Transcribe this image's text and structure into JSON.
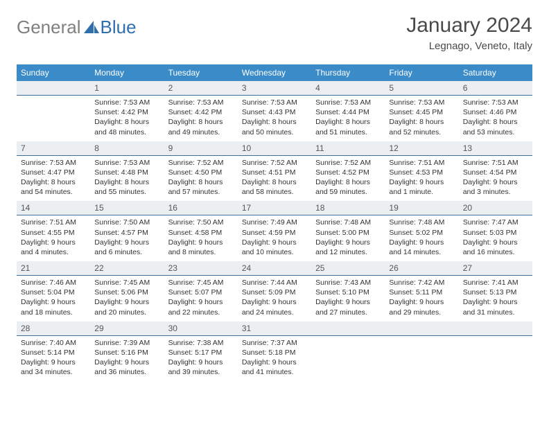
{
  "logo": {
    "text1": "General",
    "text2": "Blue",
    "color1": "#808080",
    "color2": "#2f6fad"
  },
  "title": "January 2024",
  "location": "Legnago, Veneto, Italy",
  "colors": {
    "header_bg": "#3b8bc8",
    "header_text": "#ffffff",
    "daynum_bg": "#eceff1",
    "daynum_border": "#3b6f9e",
    "body_text": "#333333"
  },
  "weekdays": [
    "Sunday",
    "Monday",
    "Tuesday",
    "Wednesday",
    "Thursday",
    "Friday",
    "Saturday"
  ],
  "weeks": [
    [
      null,
      {
        "n": "1",
        "sr": "7:53 AM",
        "ss": "4:42 PM",
        "dl": "8 hours and 48 minutes."
      },
      {
        "n": "2",
        "sr": "7:53 AM",
        "ss": "4:42 PM",
        "dl": "8 hours and 49 minutes."
      },
      {
        "n": "3",
        "sr": "7:53 AM",
        "ss": "4:43 PM",
        "dl": "8 hours and 50 minutes."
      },
      {
        "n": "4",
        "sr": "7:53 AM",
        "ss": "4:44 PM",
        "dl": "8 hours and 51 minutes."
      },
      {
        "n": "5",
        "sr": "7:53 AM",
        "ss": "4:45 PM",
        "dl": "8 hours and 52 minutes."
      },
      {
        "n": "6",
        "sr": "7:53 AM",
        "ss": "4:46 PM",
        "dl": "8 hours and 53 minutes."
      }
    ],
    [
      {
        "n": "7",
        "sr": "7:53 AM",
        "ss": "4:47 PM",
        "dl": "8 hours and 54 minutes."
      },
      {
        "n": "8",
        "sr": "7:53 AM",
        "ss": "4:48 PM",
        "dl": "8 hours and 55 minutes."
      },
      {
        "n": "9",
        "sr": "7:52 AM",
        "ss": "4:50 PM",
        "dl": "8 hours and 57 minutes."
      },
      {
        "n": "10",
        "sr": "7:52 AM",
        "ss": "4:51 PM",
        "dl": "8 hours and 58 minutes."
      },
      {
        "n": "11",
        "sr": "7:52 AM",
        "ss": "4:52 PM",
        "dl": "8 hours and 59 minutes."
      },
      {
        "n": "12",
        "sr": "7:51 AM",
        "ss": "4:53 PM",
        "dl": "9 hours and 1 minute."
      },
      {
        "n": "13",
        "sr": "7:51 AM",
        "ss": "4:54 PM",
        "dl": "9 hours and 3 minutes."
      }
    ],
    [
      {
        "n": "14",
        "sr": "7:51 AM",
        "ss": "4:55 PM",
        "dl": "9 hours and 4 minutes."
      },
      {
        "n": "15",
        "sr": "7:50 AM",
        "ss": "4:57 PM",
        "dl": "9 hours and 6 minutes."
      },
      {
        "n": "16",
        "sr": "7:50 AM",
        "ss": "4:58 PM",
        "dl": "9 hours and 8 minutes."
      },
      {
        "n": "17",
        "sr": "7:49 AM",
        "ss": "4:59 PM",
        "dl": "9 hours and 10 minutes."
      },
      {
        "n": "18",
        "sr": "7:48 AM",
        "ss": "5:00 PM",
        "dl": "9 hours and 12 minutes."
      },
      {
        "n": "19",
        "sr": "7:48 AM",
        "ss": "5:02 PM",
        "dl": "9 hours and 14 minutes."
      },
      {
        "n": "20",
        "sr": "7:47 AM",
        "ss": "5:03 PM",
        "dl": "9 hours and 16 minutes."
      }
    ],
    [
      {
        "n": "21",
        "sr": "7:46 AM",
        "ss": "5:04 PM",
        "dl": "9 hours and 18 minutes."
      },
      {
        "n": "22",
        "sr": "7:45 AM",
        "ss": "5:06 PM",
        "dl": "9 hours and 20 minutes."
      },
      {
        "n": "23",
        "sr": "7:45 AM",
        "ss": "5:07 PM",
        "dl": "9 hours and 22 minutes."
      },
      {
        "n": "24",
        "sr": "7:44 AM",
        "ss": "5:09 PM",
        "dl": "9 hours and 24 minutes."
      },
      {
        "n": "25",
        "sr": "7:43 AM",
        "ss": "5:10 PM",
        "dl": "9 hours and 27 minutes."
      },
      {
        "n": "26",
        "sr": "7:42 AM",
        "ss": "5:11 PM",
        "dl": "9 hours and 29 minutes."
      },
      {
        "n": "27",
        "sr": "7:41 AM",
        "ss": "5:13 PM",
        "dl": "9 hours and 31 minutes."
      }
    ],
    [
      {
        "n": "28",
        "sr": "7:40 AM",
        "ss": "5:14 PM",
        "dl": "9 hours and 34 minutes."
      },
      {
        "n": "29",
        "sr": "7:39 AM",
        "ss": "5:16 PM",
        "dl": "9 hours and 36 minutes."
      },
      {
        "n": "30",
        "sr": "7:38 AM",
        "ss": "5:17 PM",
        "dl": "9 hours and 39 minutes."
      },
      {
        "n": "31",
        "sr": "7:37 AM",
        "ss": "5:18 PM",
        "dl": "9 hours and 41 minutes."
      },
      null,
      null,
      null
    ]
  ],
  "labels": {
    "sunrise": "Sunrise: ",
    "sunset": "Sunset: ",
    "daylight": "Daylight: "
  }
}
